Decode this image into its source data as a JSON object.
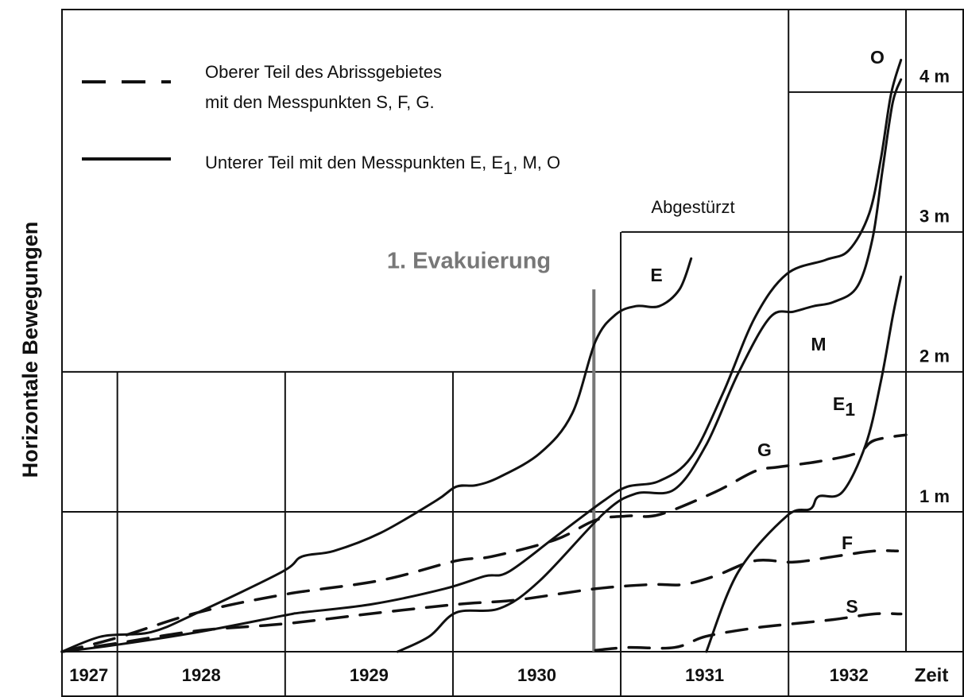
{
  "chart_data": {
    "type": "line",
    "xlabel": "Zeit",
    "ylabel": "Horizontale Bewegungen",
    "xlim": [
      1927.67,
      1932.7
    ],
    "ylim": [
      0,
      4.59
    ],
    "xticks": [
      {
        "value": 1927.83,
        "label": "1927"
      },
      {
        "value": 1928.5,
        "label": "1928"
      },
      {
        "value": 1929.5,
        "label": "1929"
      },
      {
        "value": 1930.5,
        "label": "1930"
      },
      {
        "value": 1931.5,
        "label": "1931"
      },
      {
        "value": 1932.36,
        "label": "1932"
      }
    ],
    "xgrid": [
      1928,
      1929,
      1930,
      1931,
      1932
    ],
    "yticks": [
      {
        "value": 1,
        "label": "1 m"
      },
      {
        "value": 2,
        "label": "2 m"
      },
      {
        "value": 3,
        "label": "3 m"
      },
      {
        "value": 4,
        "label": "4 m"
      }
    ],
    "legend": [
      {
        "dashed": true,
        "lines": [
          "Oberer Teil des Abrissgebietes",
          "mit den Messpunkten S, F, G."
        ]
      },
      {
        "dashed": false,
        "text": [
          "Unterer Teil mit den Messpunkten E, E",
          "1",
          ", M, O"
        ]
      }
    ],
    "evacuation": {
      "label": "1. Evakuierung",
      "x": 1930.84,
      "y": 2.59,
      "color": "#777777"
    },
    "annotations": [
      "Abgestürzt"
    ],
    "series": [
      {
        "name": "S",
        "color": "#111111",
        "dashed": true,
        "x": [
          1930.85,
          1931.04,
          1931.32,
          1931.51,
          1931.8,
          1932.03,
          1932.27,
          1932.51,
          1932.67
        ],
        "values": [
          0.01,
          0.03,
          0.03,
          0.11,
          0.17,
          0.2,
          0.23,
          0.27,
          0.27
        ]
      },
      {
        "name": "F",
        "color": "#111111",
        "dashed": true,
        "x": [
          1927.67,
          1928.0,
          1928.48,
          1929.0,
          1929.57,
          1930.04,
          1930.38,
          1930.85,
          1931.18,
          1931.37,
          1931.56,
          1931.8,
          1932.03,
          1932.27,
          1932.51,
          1932.65
        ],
        "values": [
          0,
          0.06,
          0.15,
          0.2,
          0.28,
          0.34,
          0.37,
          0.45,
          0.48,
          0.48,
          0.54,
          0.65,
          0.64,
          0.68,
          0.72,
          0.72
        ]
      },
      {
        "name": "G",
        "color": "#111111",
        "dashed": true,
        "x": [
          1927.67,
          1928.0,
          1928.48,
          1929.0,
          1929.57,
          1930.02,
          1930.23,
          1930.61,
          1930.85,
          1931.04,
          1931.23,
          1931.56,
          1931.8,
          1931.94,
          1932.18,
          1932.41,
          1932.51,
          1932.7
        ],
        "values": [
          0,
          0.1,
          0.28,
          0.41,
          0.51,
          0.65,
          0.68,
          0.8,
          0.94,
          0.97,
          0.98,
          1.14,
          1.29,
          1.32,
          1.36,
          1.42,
          1.51,
          1.55
        ]
      },
      {
        "name": "E",
        "color": "#111111",
        "dashed": false,
        "x": [
          1927.67,
          1927.91,
          1928.2,
          1928.48,
          1928.98,
          1929.1,
          1929.29,
          1929.57,
          1929.9,
          1930.02,
          1930.14,
          1930.28,
          1930.52,
          1930.71,
          1930.85,
          1930.97,
          1931.09,
          1931.23,
          1931.35,
          1931.42
        ],
        "values": [
          0,
          0.11,
          0.14,
          0.28,
          0.57,
          0.68,
          0.72,
          0.85,
          1.08,
          1.18,
          1.19,
          1.25,
          1.42,
          1.7,
          2.22,
          2.41,
          2.47,
          2.47,
          2.59,
          2.81
        ]
      },
      {
        "name": "E",
        "sub": "1",
        "color": "#111111",
        "dashed": false,
        "x": [
          1931.51,
          1931.7,
          1931.99,
          1932.13,
          1932.18,
          1932.32,
          1932.46,
          1932.55,
          1932.62,
          1932.67
        ],
        "values": [
          0,
          0.57,
          0.97,
          1.02,
          1.11,
          1.14,
          1.48,
          1.93,
          2.39,
          2.68
        ]
      },
      {
        "name": "M",
        "color": "#111111",
        "dashed": false,
        "x": [
          1929.67,
          1929.86,
          1930.02,
          1930.28,
          1930.52,
          1930.9,
          1931.09,
          1931.32,
          1931.51,
          1931.7,
          1931.89,
          1932.03,
          1932.15,
          1932.27,
          1932.41,
          1932.5,
          1932.56,
          1932.62,
          1932.67
        ],
        "values": [
          0,
          0.11,
          0.28,
          0.31,
          0.51,
          0.99,
          1.13,
          1.16,
          1.48,
          1.99,
          2.39,
          2.43,
          2.47,
          2.5,
          2.61,
          2.95,
          3.44,
          3.92,
          4.09
        ]
      },
      {
        "name": "O",
        "color": "#111111",
        "dashed": false,
        "x": [
          1927.67,
          1928.0,
          1928.48,
          1929.0,
          1929.1,
          1929.52,
          1929.95,
          1930.19,
          1930.33,
          1930.61,
          1930.9,
          1931.04,
          1931.23,
          1931.42,
          1931.61,
          1931.8,
          1931.99,
          1932.22,
          1932.36,
          1932.48,
          1932.55,
          1932.61,
          1932.67
        ],
        "values": [
          0,
          0.05,
          0.14,
          0.26,
          0.28,
          0.34,
          0.45,
          0.54,
          0.57,
          0.82,
          1.08,
          1.18,
          1.22,
          1.39,
          1.85,
          2.39,
          2.7,
          2.8,
          2.87,
          3.13,
          3.52,
          3.98,
          4.23
        ]
      }
    ]
  }
}
